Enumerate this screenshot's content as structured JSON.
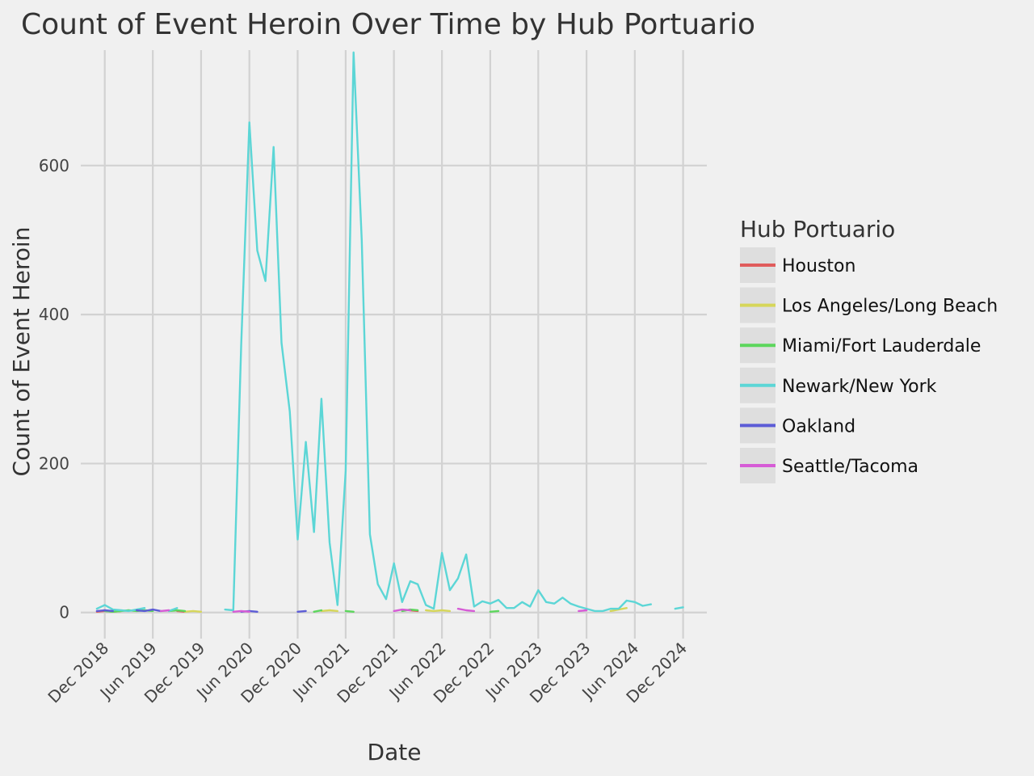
{
  "chart_data": {
    "type": "line",
    "title": "Count of Event Heroin Over Time by Hub Portuario",
    "xlabel": "Date",
    "ylabel": "Count of Event Heroin",
    "x_range": [
      "2018-09-01",
      "2025-03-01"
    ],
    "x_ticks": [
      {
        "date": "2018-12-01",
        "label": "Dec 2018"
      },
      {
        "date": "2019-06-01",
        "label": "Jun 2019"
      },
      {
        "date": "2019-12-01",
        "label": "Dec 2019"
      },
      {
        "date": "2020-06-01",
        "label": "Jun 2020"
      },
      {
        "date": "2020-12-01",
        "label": "Dec 2020"
      },
      {
        "date": "2021-06-01",
        "label": "Jun 2021"
      },
      {
        "date": "2021-12-01",
        "label": "Dec 2021"
      },
      {
        "date": "2022-06-01",
        "label": "Jun 2022"
      },
      {
        "date": "2022-12-01",
        "label": "Dec 2022"
      },
      {
        "date": "2023-06-01",
        "label": "Jun 2023"
      },
      {
        "date": "2023-12-01",
        "label": "Dec 2023"
      },
      {
        "date": "2024-06-01",
        "label": "Jun 2024"
      },
      {
        "date": "2024-12-01",
        "label": "Dec 2024"
      }
    ],
    "y_range": [
      -35,
      755
    ],
    "y_ticks": [
      0,
      200,
      400,
      600
    ],
    "grid": true,
    "legend": {
      "title": "Hub Portuario",
      "placement": "right"
    },
    "series": [
      {
        "name": "Houston",
        "color": "#e05c5c",
        "segments": [
          [
            [
              "2018-11-01",
              1
            ],
            [
              "2018-12-01",
              2
            ],
            [
              "2019-01-01",
              1
            ],
            [
              "2019-02-01",
              2
            ]
          ],
          [
            [
              "2019-09-01",
              2
            ],
            [
              "2019-10-01",
              1
            ]
          ],
          [
            [
              "2022-02-01",
              3
            ],
            [
              "2022-03-01",
              2
            ]
          ]
        ]
      },
      {
        "name": "Los Angeles/Long Beach",
        "color": "#d6d65a",
        "segments": [
          [
            [
              "2019-10-01",
              1
            ],
            [
              "2019-11-01",
              2
            ],
            [
              "2019-12-01",
              1
            ]
          ],
          [
            [
              "2021-03-01",
              2
            ],
            [
              "2021-04-01",
              3
            ],
            [
              "2021-05-01",
              2
            ]
          ],
          [
            [
              "2022-04-01",
              3
            ],
            [
              "2022-05-01",
              2
            ],
            [
              "2022-06-01",
              3
            ],
            [
              "2022-07-01",
              2
            ]
          ],
          [
            [
              "2024-03-01",
              2
            ],
            [
              "2024-04-01",
              4
            ],
            [
              "2024-05-01",
              6
            ]
          ]
        ]
      },
      {
        "name": "Miami/Fort Lauderdale",
        "color": "#5cd65c",
        "segments": [
          [
            [
              "2018-12-01",
              2
            ],
            [
              "2019-01-01",
              1
            ],
            [
              "2019-02-01",
              2
            ],
            [
              "2019-03-01",
              3
            ],
            [
              "2019-04-01",
              2
            ],
            [
              "2019-05-01",
              3
            ],
            [
              "2019-06-01",
              2
            ]
          ],
          [
            [
              "2019-08-01",
              2
            ],
            [
              "2019-09-01",
              3
            ],
            [
              "2019-10-01",
              2
            ]
          ],
          [
            [
              "2021-02-01",
              1
            ],
            [
              "2021-03-01",
              3
            ]
          ],
          [
            [
              "2021-06-01",
              2
            ],
            [
              "2021-07-01",
              1
            ]
          ],
          [
            [
              "2022-01-01",
              2
            ],
            [
              "2022-02-01",
              4
            ],
            [
              "2022-03-01",
              3
            ]
          ],
          [
            [
              "2022-12-01",
              1
            ],
            [
              "2023-01-01",
              2
            ]
          ]
        ]
      },
      {
        "name": "Newark/New York",
        "color": "#5cd6d6",
        "segments": [
          [
            [
              "2018-11-01",
              5
            ],
            [
              "2018-12-01",
              10
            ],
            [
              "2019-01-01",
              4
            ],
            [
              "2019-02-01",
              3
            ],
            [
              "2019-03-01",
              2
            ],
            [
              "2019-04-01",
              4
            ],
            [
              "2019-05-01",
              6
            ]
          ],
          [
            [
              "2019-08-01",
              2
            ],
            [
              "2019-09-01",
              6
            ]
          ],
          [
            [
              "2020-03-01",
              4
            ],
            [
              "2020-04-01",
              3
            ],
            [
              "2020-05-01",
              360
            ],
            [
              "2020-06-01",
              658
            ],
            [
              "2020-07-01",
              486
            ],
            [
              "2020-08-01",
              445
            ],
            [
              "2020-09-01",
              625
            ],
            [
              "2020-10-01",
              362
            ],
            [
              "2020-11-01",
              270
            ],
            [
              "2020-12-01",
              98
            ],
            [
              "2021-01-01",
              229
            ],
            [
              "2021-02-01",
              108
            ],
            [
              "2021-03-01",
              287
            ],
            [
              "2021-04-01",
              94
            ],
            [
              "2021-05-01",
              10
            ],
            [
              "2021-06-01",
              190
            ],
            [
              "2021-07-01",
              752
            ],
            [
              "2021-08-01",
              500
            ],
            [
              "2021-09-01",
              105
            ],
            [
              "2021-10-01",
              38
            ],
            [
              "2021-11-01",
              18
            ],
            [
              "2021-12-01",
              66
            ],
            [
              "2022-01-01",
              14
            ],
            [
              "2022-02-01",
              42
            ],
            [
              "2022-03-01",
              38
            ],
            [
              "2022-04-01",
              10
            ],
            [
              "2022-05-01",
              5
            ],
            [
              "2022-06-01",
              80
            ],
            [
              "2022-07-01",
              30
            ],
            [
              "2022-08-01",
              46
            ],
            [
              "2022-09-01",
              78
            ],
            [
              "2022-10-01",
              8
            ],
            [
              "2022-11-01",
              15
            ],
            [
              "2022-12-01",
              12
            ],
            [
              "2023-01-01",
              17
            ],
            [
              "2023-02-01",
              6
            ],
            [
              "2023-03-01",
              6
            ],
            [
              "2023-04-01",
              14
            ],
            [
              "2023-05-01",
              8
            ],
            [
              "2023-06-01",
              30
            ],
            [
              "2023-07-01",
              14
            ],
            [
              "2023-08-01",
              12
            ],
            [
              "2023-09-01",
              20
            ],
            [
              "2023-10-01",
              12
            ],
            [
              "2023-11-01",
              8
            ],
            [
              "2023-12-01",
              5
            ],
            [
              "2024-01-01",
              2
            ],
            [
              "2024-02-01",
              2
            ],
            [
              "2024-03-01",
              5
            ],
            [
              "2024-04-01",
              5
            ],
            [
              "2024-05-01",
              16
            ],
            [
              "2024-06-01",
              14
            ],
            [
              "2024-07-01",
              9
            ],
            [
              "2024-08-01",
              11
            ]
          ],
          [
            [
              "2024-11-01",
              5
            ],
            [
              "2024-12-01",
              7
            ]
          ]
        ]
      },
      {
        "name": "Oakland",
        "color": "#5c5cd6",
        "segments": [
          [
            [
              "2018-11-01",
              2
            ],
            [
              "2018-12-01",
              3
            ],
            [
              "2019-01-01",
              2
            ]
          ],
          [
            [
              "2019-04-01",
              3
            ],
            [
              "2019-05-01",
              2
            ],
            [
              "2019-06-01",
              4
            ],
            [
              "2019-07-01",
              2
            ]
          ],
          [
            [
              "2020-05-01",
              1
            ],
            [
              "2020-06-01",
              2
            ],
            [
              "2020-07-01",
              1
            ]
          ],
          [
            [
              "2020-12-01",
              1
            ],
            [
              "2021-01-01",
              2
            ]
          ]
        ]
      },
      {
        "name": "Seattle/Tacoma",
        "color": "#d65cd6",
        "segments": [
          [
            [
              "2019-07-01",
              2
            ],
            [
              "2019-08-01",
              3
            ]
          ],
          [
            [
              "2020-04-01",
              1
            ],
            [
              "2020-05-01",
              2
            ],
            [
              "2020-06-01",
              1
            ]
          ],
          [
            [
              "2021-12-01",
              2
            ],
            [
              "2022-01-01",
              4
            ],
            [
              "2022-02-01",
              3
            ]
          ],
          [
            [
              "2022-08-01",
              5
            ],
            [
              "2022-09-01",
              3
            ],
            [
              "2022-10-01",
              2
            ]
          ],
          [
            [
              "2023-11-01",
              2
            ],
            [
              "2023-12-01",
              3
            ]
          ]
        ]
      }
    ]
  }
}
